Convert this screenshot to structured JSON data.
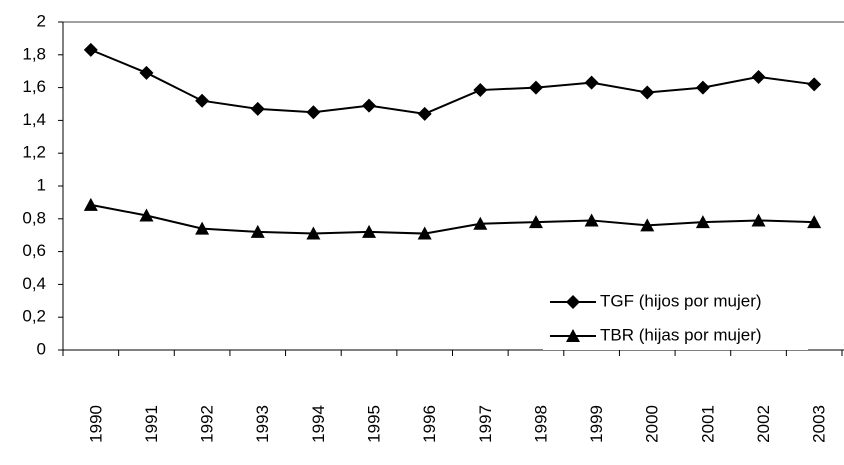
{
  "chart_data": {
    "type": "line",
    "categories": [
      "1990",
      "1991",
      "1992",
      "1993",
      "1994",
      "1995",
      "1996",
      "1997",
      "1998",
      "1999",
      "2000",
      "2001",
      "2002",
      "2003"
    ],
    "series": [
      {
        "name": "TGF (hijos por mujer)",
        "color": "#000000",
        "marker": "diamond",
        "values": [
          1.83,
          1.69,
          1.52,
          1.47,
          1.45,
          1.49,
          1.44,
          1.585,
          1.6,
          1.63,
          1.57,
          1.6,
          1.665,
          1.62
        ]
      },
      {
        "name": "TBR (hijas por mujer)",
        "color": "#000000",
        "marker": "triangle",
        "values": [
          0.885,
          0.82,
          0.74,
          0.72,
          0.71,
          0.72,
          0.71,
          0.77,
          0.78,
          0.79,
          0.76,
          0.78,
          0.79,
          0.78
        ]
      }
    ],
    "ylim": [
      0,
      2
    ],
    "yticks": [
      0,
      {
        "value": 0.2,
        "label": "0,2"
      },
      {
        "value": 0.4,
        "label": "0,4"
      },
      {
        "value": 0.6,
        "label": "0,6"
      },
      {
        "value": 0.8,
        "label": "0,8"
      },
      1,
      {
        "value": 1.2,
        "label": "1,2"
      },
      {
        "value": 1.4,
        "label": "1,4"
      },
      {
        "value": 1.6,
        "label": "1,6"
      },
      {
        "value": 1.8,
        "label": "1,8"
      },
      2
    ],
    "grid": false,
    "legend": "lower right"
  }
}
